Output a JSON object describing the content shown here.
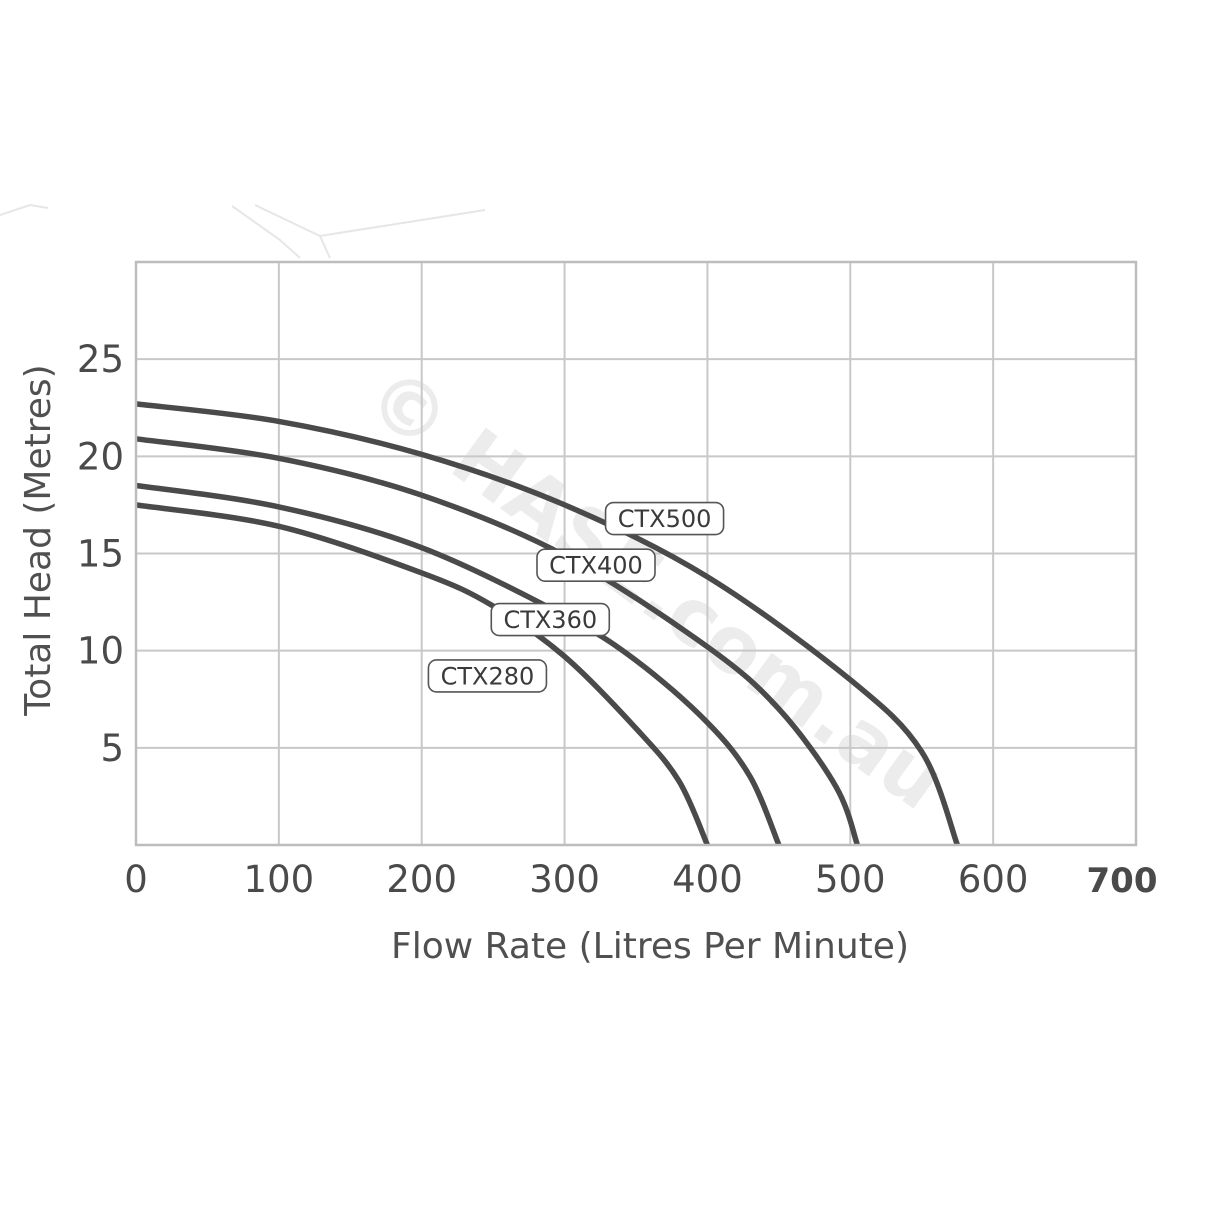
{
  "chart_data": {
    "type": "line",
    "title": "",
    "xlabel": "Flow Rate (Litres Per Minute)",
    "ylabel": "Total Head (Metres)",
    "xlim": [
      0,
      700
    ],
    "ylim": [
      0,
      30
    ],
    "x_ticks": [
      0,
      100,
      200,
      300,
      400,
      500,
      600,
      700
    ],
    "x_tick_labels": [
      "0",
      "100",
      "200",
      "300",
      "400",
      "500",
      "600",
      "700"
    ],
    "y_ticks": [
      5,
      10,
      15,
      20,
      25
    ],
    "y_tick_labels": [
      "5",
      "10",
      "15",
      "20",
      "25"
    ],
    "grid": true,
    "legend": "inline labels on curves",
    "series": [
      {
        "name": "CTX500",
        "x": [
          0,
          100,
          200,
          300,
          400,
          500,
          550,
          575
        ],
        "y": [
          22.7,
          21.8,
          20.1,
          17.5,
          13.8,
          8.5,
          4.8,
          0
        ]
      },
      {
        "name": "CTX400",
        "x": [
          0,
          100,
          200,
          300,
          400,
          450,
          490,
          505
        ],
        "y": [
          20.9,
          19.9,
          18.0,
          14.9,
          10.2,
          7.0,
          3.0,
          0
        ]
      },
      {
        "name": "CTX360",
        "x": [
          0,
          100,
          200,
          300,
          350,
          400,
          430,
          450
        ],
        "y": [
          18.5,
          17.4,
          15.3,
          11.8,
          9.5,
          6.3,
          3.5,
          0
        ]
      },
      {
        "name": "CTX280",
        "x": [
          0,
          100,
          200,
          250,
          300,
          350,
          380,
          400
        ],
        "y": [
          17.5,
          16.4,
          14.0,
          12.3,
          9.7,
          6.0,
          3.3,
          0
        ]
      }
    ],
    "series_labels": [
      {
        "text": "CTX500",
        "x": 370,
        "y": 16.8
      },
      {
        "text": "CTX400",
        "x": 322,
        "y": 14.4
      },
      {
        "text": "CTX360",
        "x": 290,
        "y": 11.6
      },
      {
        "text": "CTX280",
        "x": 246,
        "y": 8.7
      }
    ],
    "colors": {
      "curve": "#4a4a4a",
      "grid": "#c8c8c8",
      "frame": "#bdbdbd",
      "label_border": "#555555"
    }
  },
  "watermark": "© HASE.com.au"
}
